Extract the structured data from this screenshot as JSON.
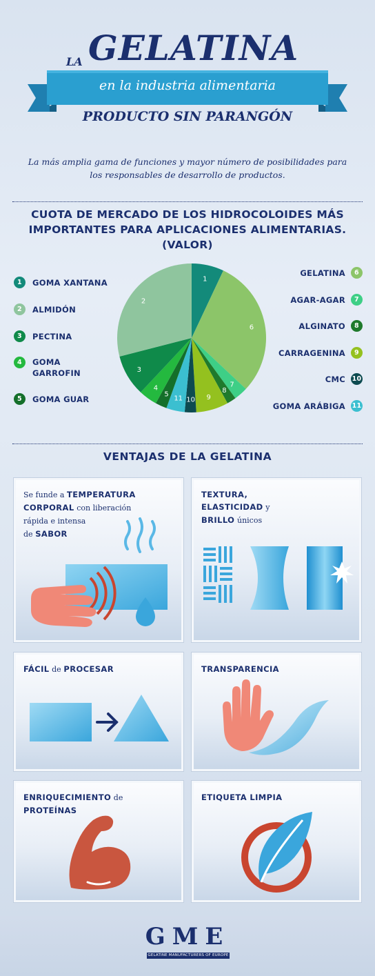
{
  "header": {
    "la": "LA",
    "title": "GELATINA",
    "subtitle": "en la industria alimentaria",
    "tagline": "PRODUCTO SIN PARANGÓN",
    "intro": "La más amplia gama de funciones y mayor número de posibilidades para los responsables de desarrollo de productos."
  },
  "chart_section": {
    "title": "CUOTA DE MERCADO DE LOS HIDROCOLOIDES MÁS IMPORTANTES PARA APLICACIONES ALIMENTARIAS. (VALOR)"
  },
  "chart_data": {
    "type": "pie",
    "title": "CUOTA DE MERCADO DE LOS HIDROCOLOIDES MÁS IMPORTANTES PARA APLICACIONES ALIMENTARIAS. (VALOR)",
    "slices": [
      {
        "label": "1",
        "name": "GOMA XANTANA",
        "value": 7,
        "color": "#138a7a"
      },
      {
        "label": "6",
        "name": "GELATINA",
        "value": 30,
        "color": "#8cc569"
      },
      {
        "label": "7",
        "name": "AGAR-AGAR",
        "value": 3,
        "color": "#3ecf86"
      },
      {
        "label": "8",
        "name": "ALGINATO",
        "value": 2,
        "color": "#1f7a2c"
      },
      {
        "label": "9",
        "name": "CARRAGENINA",
        "value": 7,
        "color": "#94c11f"
      },
      {
        "label": "10",
        "name": "CMC",
        "value": 2.5,
        "color": "#0d4b50"
      },
      {
        "label": "11",
        "name": "GOMA ARÁBIGA",
        "value": 4,
        "color": "#3bbfd0"
      },
      {
        "label": "5",
        "name": "GOMA GUAR",
        "value": 2.5,
        "color": "#146f2a"
      },
      {
        "label": "4",
        "name": "GOMA GARROFIN",
        "value": 4,
        "color": "#24b93f"
      },
      {
        "label": "3",
        "name": "PECTINA",
        "value": 9,
        "color": "#0f8a4a"
      },
      {
        "label": "2",
        "name": "ALMIDÓN",
        "value": 29,
        "color": "#8fc59e"
      }
    ]
  },
  "legend_left": [
    {
      "num": "1",
      "name": "GOMA XANTANA",
      "color": "#138a7a"
    },
    {
      "num": "2",
      "name": "ALMIDÓN",
      "color": "#8fc59e"
    },
    {
      "num": "3",
      "name": "PECTINA",
      "color": "#0f8a4a"
    },
    {
      "num": "4",
      "name": "GOMA GARROFIN",
      "color": "#24b93f"
    },
    {
      "num": "5",
      "name": "GOMA GUAR",
      "color": "#146f2a"
    }
  ],
  "legend_right": [
    {
      "num": "6",
      "name": "GELATINA",
      "color": "#8cc569"
    },
    {
      "num": "7",
      "name": "AGAR-AGAR",
      "color": "#3ecf86"
    },
    {
      "num": "8",
      "name": "ALGINATO",
      "color": "#1f7a2c"
    },
    {
      "num": "9",
      "name": "CARRAGENINA",
      "color": "#94c11f"
    },
    {
      "num": "10",
      "name": "CMC",
      "color": "#0d4b50"
    },
    {
      "num": "11",
      "name": "GOMA ARÁBIGA",
      "color": "#3bbfd0"
    }
  ],
  "advantages": {
    "title": "VENTAJAS DE LA GELATINA",
    "card1": {
      "t1": "Se funde a",
      "t2": "TEMPERATURA",
      "t3": "CORPORAL",
      "t4": "con liberación",
      "t5": "rápida e intensa",
      "t6": "de",
      "t7": "SABOR"
    },
    "card2": {
      "t1": "TEXTURA,",
      "t2": "ELASTICIDAD",
      "t3": "y",
      "t4": "BRILLO",
      "t5": "únicos"
    },
    "card3": {
      "t1": "FÁCIL",
      "t2": "de",
      "t3": "PROCESAR"
    },
    "card4": {
      "t1": "TRANSPARENCIA"
    },
    "card5": {
      "t1": "ENRIQUECIMIENTO",
      "t2": "de",
      "t3": "PROTEÍNAS"
    },
    "card6": {
      "t1": "ETIQUETA LIMPIA"
    }
  },
  "footer": {
    "logo": "GME",
    "logo_sub": "GELATINE MANUFACTURERS OF EUROPE"
  },
  "colors": {
    "navy": "#1b2f6e",
    "ribbon": "#2a9fd0",
    "salmon": "#f08877",
    "sky": "#4cb6e6"
  }
}
